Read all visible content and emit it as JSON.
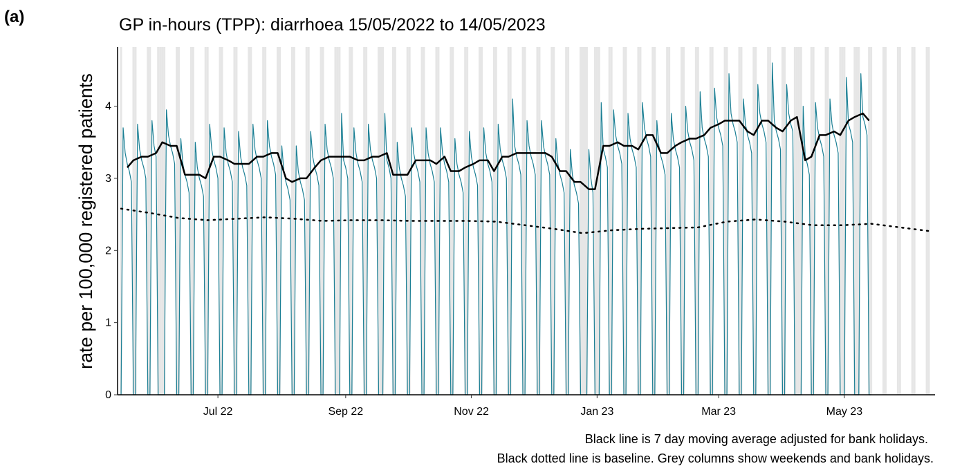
{
  "panel_label": "(a)",
  "chart_data": {
    "type": "line",
    "title": "GP in-hours (TPP): diarrhoea 15/05/2022 to 14/05/2023",
    "ylabel": "rate per 100,000 registered patients",
    "notes": [
      "Black line is 7 day moving average adjusted for bank holidays.",
      "Black dotted line is baseline. Grey columns show weekends and bank holidays."
    ],
    "xlim": [
      -1.7,
      395
    ],
    "ylim": [
      0,
      4.82
    ],
    "xticks": [
      {
        "value": 47,
        "label": "Jul 22"
      },
      {
        "value": 109,
        "label": "Sep 22"
      },
      {
        "value": 170,
        "label": "Nov 22"
      },
      {
        "value": 231,
        "label": "Jan 23"
      },
      {
        "value": 290,
        "label": "Mar 23"
      },
      {
        "value": 351,
        "label": "May 23"
      }
    ],
    "yticks": [
      0,
      1,
      2,
      3,
      4
    ],
    "shade_color": "#e6e6e6",
    "shaded_x": [
      0,
      6,
      7,
      13,
      14,
      18,
      19,
      20,
      21,
      27,
      28,
      34,
      35,
      41,
      42,
      48,
      49,
      55,
      56,
      62,
      63,
      69,
      70,
      76,
      77,
      83,
      84,
      90,
      91,
      97,
      98,
      104,
      105,
      106,
      111,
      112,
      118,
      119,
      125,
      126,
      127,
      132,
      133,
      139,
      140,
      146,
      147,
      153,
      154,
      160,
      161,
      167,
      168,
      174,
      175,
      181,
      182,
      188,
      189,
      195,
      196,
      202,
      203,
      209,
      210,
      216,
      217,
      223,
      224,
      225,
      226,
      230,
      231,
      232,
      237,
      238,
      244,
      245,
      251,
      252,
      258,
      259,
      265,
      266,
      272,
      273,
      279,
      280,
      286,
      287,
      293,
      294,
      300,
      301,
      307,
      308,
      314,
      315,
      321,
      322,
      327,
      328,
      329,
      330,
      335,
      336,
      342,
      343,
      349,
      350,
      351,
      356,
      357,
      358,
      363,
      364,
      370,
      371,
      377,
      378,
      384,
      385,
      391,
      392
    ],
    "x": [
      0,
      1,
      2,
      3,
      4,
      5,
      6,
      7,
      8,
      9,
      10,
      11,
      12,
      13,
      14,
      15,
      16,
      17,
      18,
      19,
      20,
      21,
      22,
      23,
      24,
      25,
      26,
      27,
      28,
      29,
      30,
      31,
      32,
      33,
      34,
      35,
      36,
      37,
      38,
      39,
      40,
      41,
      42,
      43,
      44,
      45,
      46,
      47,
      48,
      49,
      50,
      51,
      52,
      53,
      54,
      55,
      56,
      57,
      58,
      59,
      60,
      61,
      62,
      63,
      64,
      65,
      66,
      67,
      68,
      69,
      70,
      71,
      72,
      73,
      74,
      75,
      76,
      77,
      78,
      79,
      80,
      81,
      82,
      83,
      84,
      85,
      86,
      87,
      88,
      89,
      90,
      91,
      92,
      93,
      94,
      95,
      96,
      97,
      98,
      99,
      100,
      101,
      102,
      103,
      104,
      105,
      106,
      107,
      108,
      109,
      110,
      111,
      112,
      113,
      114,
      115,
      116,
      117,
      118,
      119,
      120,
      121,
      122,
      123,
      124,
      125,
      126,
      127,
      128,
      129,
      130,
      131,
      132,
      133,
      134,
      135,
      136,
      137,
      138,
      139,
      140,
      141,
      142,
      143,
      144,
      145,
      146,
      147,
      148,
      149,
      150,
      151,
      152,
      153,
      154,
      155,
      156,
      157,
      158,
      159,
      160,
      161,
      162,
      163,
      164,
      165,
      166,
      167,
      168,
      169,
      170,
      171,
      172,
      173,
      174,
      175,
      176,
      177,
      178,
      179,
      180,
      181,
      182,
      183,
      184,
      185,
      186,
      187,
      188,
      189,
      190,
      191,
      192,
      193,
      194,
      195,
      196,
      197,
      198,
      199,
      200,
      201,
      202,
      203,
      204,
      205,
      206,
      207,
      208,
      209,
      210,
      211,
      212,
      213,
      214,
      215,
      216,
      217,
      218,
      219,
      220,
      221,
      222,
      223,
      224,
      225,
      226,
      227,
      228,
      229,
      230,
      231,
      232,
      233,
      234,
      235,
      236,
      237,
      238,
      239,
      240,
      241,
      242,
      243,
      244,
      245,
      246,
      247,
      248,
      249,
      250,
      251,
      252,
      253,
      254,
      255,
      256,
      257,
      258,
      259,
      260,
      261,
      262,
      263,
      264,
      265,
      266,
      267,
      268,
      269,
      270,
      271,
      272,
      273,
      274,
      275,
      276,
      277,
      278,
      279,
      280,
      281,
      282,
      283,
      284,
      285,
      286,
      287,
      288,
      289,
      290,
      291,
      292,
      293,
      294,
      295,
      296,
      297,
      298,
      299,
      300,
      301,
      302,
      303,
      304,
      305,
      306,
      307,
      308,
      309,
      310,
      311,
      312,
      313,
      314,
      315,
      316,
      317,
      318,
      319,
      320,
      321,
      322,
      323,
      324,
      325,
      326,
      327,
      328,
      329,
      330,
      331,
      332,
      333,
      334,
      335,
      336,
      337,
      338,
      339,
      340,
      341,
      342,
      343,
      344,
      345,
      346,
      347,
      348,
      349,
      350,
      351,
      352,
      353,
      354,
      355,
      356,
      357,
      358,
      359,
      360,
      361,
      362,
      363,
      364
    ],
    "series": [
      {
        "color": "#1b7f94",
        "values": [
          0,
          3.7,
          3.35,
          3.2,
          3.1,
          2.95,
          0,
          0,
          3.75,
          3.4,
          3.25,
          3.15,
          3.0,
          0,
          0,
          3.8,
          3.45,
          3.3,
          0,
          0,
          0,
          0,
          3.95,
          3.6,
          3.45,
          3.35,
          3.2,
          0,
          0,
          3.55,
          3.2,
          3.05,
          2.95,
          2.8,
          0,
          0,
          3.5,
          3.15,
          3.0,
          2.9,
          2.75,
          0,
          0,
          3.75,
          3.4,
          3.25,
          3.15,
          3.0,
          0,
          0,
          3.7,
          3.35,
          3.2,
          3.1,
          2.95,
          0,
          0,
          3.65,
          3.3,
          3.15,
          3.05,
          2.9,
          0,
          0,
          3.75,
          3.4,
          3.25,
          3.15,
          3.0,
          0,
          0,
          3.8,
          3.45,
          3.3,
          3.2,
          3.05,
          0,
          0,
          3.45,
          3.1,
          2.95,
          2.85,
          2.7,
          0,
          0,
          3.45,
          3.1,
          2.95,
          2.85,
          2.7,
          0,
          0,
          3.65,
          3.3,
          3.15,
          3.05,
          2.9,
          0,
          0,
          3.75,
          3.4,
          3.25,
          3.15,
          3.0,
          0,
          0,
          0,
          3.9,
          3.25,
          3.15,
          3.0,
          0,
          0,
          3.7,
          3.35,
          3.2,
          3.1,
          2.95,
          0,
          0,
          3.75,
          3.4,
          3.25,
          3.15,
          3.0,
          0,
          0,
          0,
          3.9,
          3.25,
          3.15,
          3.0,
          0,
          0,
          3.5,
          3.15,
          3.0,
          2.9,
          2.75,
          0,
          0,
          3.7,
          3.35,
          3.2,
          3.1,
          2.95,
          0,
          0,
          3.7,
          3.35,
          3.2,
          3.1,
          2.95,
          0,
          0,
          3.7,
          3.35,
          3.2,
          3.1,
          2.95,
          0,
          0,
          3.55,
          3.2,
          3.05,
          2.95,
          2.8,
          0,
          0,
          3.65,
          3.3,
          3.15,
          3.05,
          2.9,
          0,
          0,
          3.7,
          3.35,
          3.2,
          3.1,
          2.95,
          0,
          0,
          3.75,
          3.4,
          3.25,
          3.15,
          3.0,
          0,
          0,
          4.1,
          3.45,
          3.3,
          3.2,
          3.05,
          0,
          0,
          3.8,
          3.45,
          3.3,
          3.2,
          3.05,
          0,
          0,
          3.8,
          3.45,
          3.3,
          3.2,
          3.05,
          0,
          0,
          3.55,
          3.2,
          3.05,
          2.95,
          2.8,
          0,
          0,
          3.4,
          3.05,
          2.9,
          2.8,
          2.65,
          0,
          0,
          0,
          0,
          3.4,
          3.0,
          2.8,
          0,
          0,
          0,
          4.05,
          3.4,
          3.3,
          3.15,
          0,
          0,
          3.95,
          3.6,
          3.45,
          3.35,
          3.2,
          0,
          0,
          3.9,
          3.55,
          3.4,
          3.3,
          3.15,
          0,
          0,
          4.05,
          3.7,
          3.55,
          3.45,
          3.3,
          0,
          0,
          3.8,
          3.45,
          3.3,
          3.2,
          3.05,
          0,
          0,
          3.9,
          3.55,
          3.4,
          3.3,
          3.15,
          0,
          0,
          4.0,
          3.65,
          3.5,
          3.4,
          3.25,
          0,
          0,
          4.2,
          3.7,
          3.55,
          3.45,
          3.3,
          0,
          0,
          4.25,
          3.85,
          3.7,
          3.6,
          3.45,
          0,
          0,
          4.45,
          3.9,
          3.75,
          3.65,
          3.5,
          0,
          0,
          4.1,
          3.75,
          3.6,
          3.5,
          3.35,
          0,
          0,
          4.3,
          3.9,
          3.75,
          3.65,
          3.5,
          0,
          0,
          4.6,
          3.8,
          3.65,
          3.55,
          3.4,
          0,
          0,
          4.3,
          3.9,
          3.75,
          3.65,
          0,
          0,
          0,
          0,
          4.0,
          3.3,
          3.2,
          3.05,
          0,
          0,
          4.05,
          3.7,
          3.55,
          3.45,
          3.3,
          0,
          0,
          4.1,
          3.75,
          3.6,
          3.5,
          3.35,
          0,
          0,
          0,
          4.4,
          3.75,
          3.65,
          3.5,
          0,
          0,
          0,
          4.45,
          3.85,
          3.75,
          3.6,
          0,
          0
        ]
      },
      {
        "color": "#000000",
        "x": [
          3,
          6,
          10,
          13,
          17,
          20,
          24,
          27,
          31,
          34,
          38,
          41,
          45,
          48,
          52,
          55,
          59,
          62,
          66,
          69,
          73,
          76,
          80,
          83,
          87,
          90,
          94,
          97,
          101,
          104,
          108,
          111,
          115,
          118,
          122,
          125,
          129,
          132,
          136,
          139,
          143,
          146,
          150,
          153,
          157,
          160,
          164,
          167,
          171,
          174,
          178,
          181,
          185,
          188,
          192,
          195,
          199,
          202,
          206,
          209,
          213,
          216,
          220,
          223,
          227,
          230,
          234,
          237,
          241,
          244,
          248,
          251,
          255,
          258,
          262,
          265,
          269,
          272,
          276,
          279,
          283,
          286,
          290,
          293,
          297,
          300,
          304,
          307,
          311,
          314,
          318,
          321,
          325,
          328,
          332,
          335,
          339,
          342,
          346,
          349,
          353,
          356,
          360,
          363
        ],
        "values": [
          3.15,
          3.25,
          3.3,
          3.3,
          3.35,
          3.5,
          3.45,
          3.45,
          3.05,
          3.05,
          3.05,
          3.0,
          3.3,
          3.3,
          3.25,
          3.2,
          3.2,
          3.2,
          3.3,
          3.3,
          3.35,
          3.35,
          3.0,
          2.95,
          3.0,
          3.0,
          3.15,
          3.25,
          3.3,
          3.3,
          3.3,
          3.3,
          3.25,
          3.25,
          3.3,
          3.3,
          3.35,
          3.05,
          3.05,
          3.05,
          3.25,
          3.25,
          3.25,
          3.2,
          3.3,
          3.1,
          3.1,
          3.15,
          3.2,
          3.25,
          3.25,
          3.1,
          3.3,
          3.3,
          3.35,
          3.35,
          3.35,
          3.35,
          3.35,
          3.3,
          3.1,
          3.1,
          2.95,
          2.95,
          2.85,
          2.85,
          3.45,
          3.45,
          3.5,
          3.45,
          3.45,
          3.4,
          3.6,
          3.6,
          3.35,
          3.35,
          3.45,
          3.5,
          3.55,
          3.55,
          3.6,
          3.7,
          3.75,
          3.8,
          3.8,
          3.8,
          3.65,
          3.6,
          3.8,
          3.8,
          3.7,
          3.65,
          3.8,
          3.85,
          3.25,
          3.3,
          3.6,
          3.6,
          3.65,
          3.6,
          3.8,
          3.85,
          3.9,
          3.8
        ]
      },
      {
        "color": "#000000",
        "linestyle": "dotted",
        "x": [
          0,
          14,
          28,
          42,
          56,
          70,
          84,
          98,
          112,
          126,
          140,
          154,
          168,
          182,
          196,
          210,
          224,
          238,
          252,
          266,
          280,
          294,
          308,
          322,
          336,
          350,
          364,
          378,
          392
        ],
        "values": [
          2.58,
          2.52,
          2.45,
          2.42,
          2.44,
          2.46,
          2.44,
          2.41,
          2.42,
          2.42,
          2.41,
          2.41,
          2.41,
          2.4,
          2.35,
          2.3,
          2.24,
          2.28,
          2.3,
          2.31,
          2.32,
          2.4,
          2.43,
          2.4,
          2.35,
          2.35,
          2.37,
          2.32,
          2.27
        ]
      }
    ]
  }
}
